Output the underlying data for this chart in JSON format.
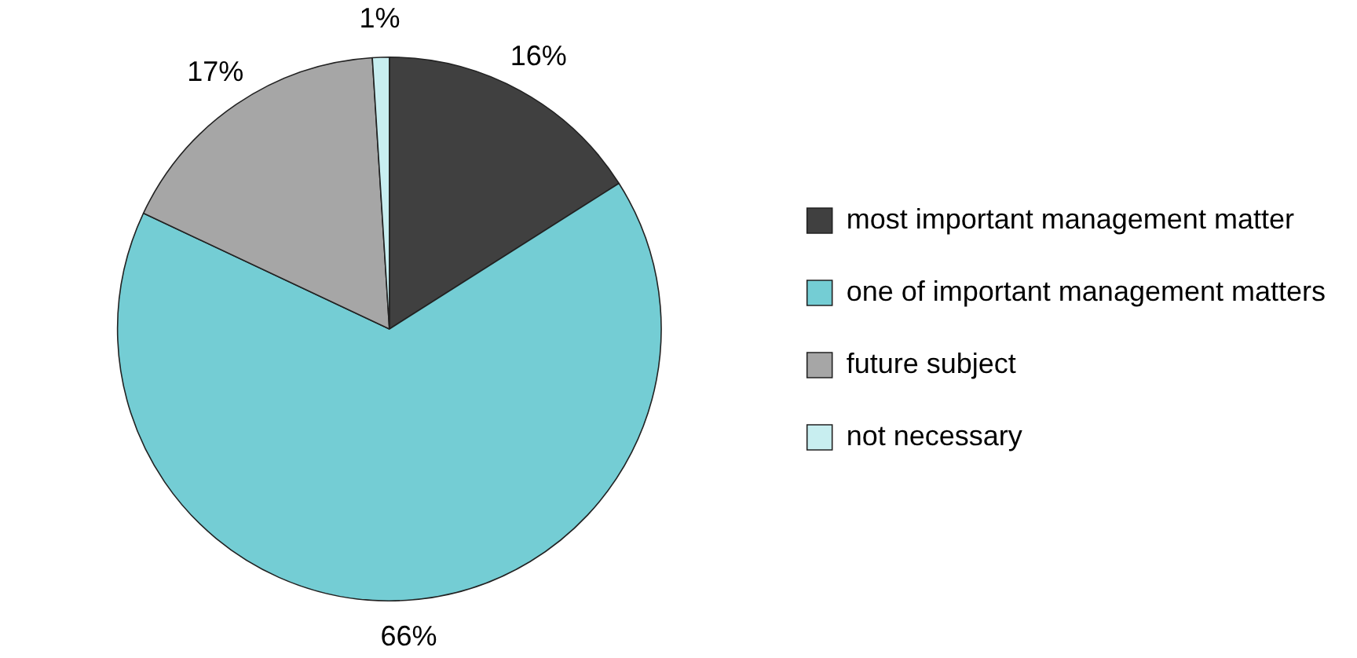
{
  "chart_data": {
    "type": "pie",
    "categories": [
      "most important management matter",
      "one of important management matters",
      "future subject",
      "not necessary"
    ],
    "values": [
      16,
      66,
      17,
      1
    ],
    "colors": [
      "#404040",
      "#74cdd4",
      "#a6a6a6",
      "#c8eef0"
    ],
    "value_labels": [
      "16%",
      "66%",
      "17%",
      "1%"
    ],
    "legend": "right"
  }
}
